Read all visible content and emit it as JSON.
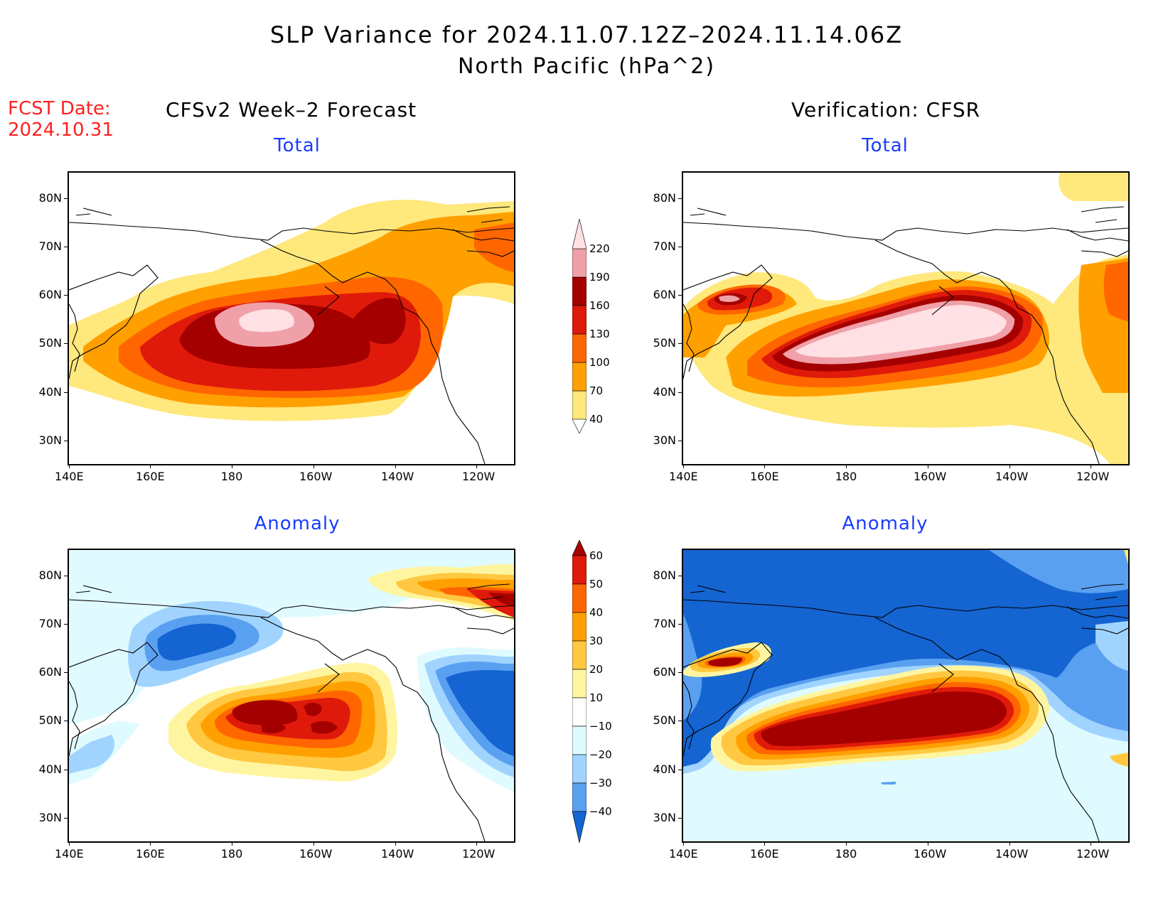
{
  "title": "SLP Variance for 2024.11.07.12Z–2024.11.14.06Z",
  "subtitle": "North Pacific (hPa^2)",
  "forecast_label": "FCST Date:",
  "forecast_date": "2024.10.31",
  "left_column_title": "CFSv2 Week–2 Forecast",
  "right_column_title": "Verification: CFSR",
  "panel_titles": {
    "total": "Total",
    "anomaly": "Anomaly"
  },
  "x_ticks": [
    "140E",
    "160E",
    "180",
    "160W",
    "140W",
    "120W"
  ],
  "y_ticks": [
    "80N",
    "70N",
    "60N",
    "50N",
    "40N",
    "30N"
  ],
  "total_colorbar": {
    "levels": [
      "40",
      "70",
      "100",
      "130",
      "160",
      "190",
      "220"
    ],
    "colors": [
      "#ffe87c",
      "#ffa000",
      "#ff6600",
      "#e01a0a",
      "#a50000",
      "#f0a0a8",
      "#ffe0e4"
    ]
  },
  "anomaly_colorbar": {
    "levels": [
      "60",
      "50",
      "40",
      "30",
      "20",
      "10",
      "−10",
      "−20",
      "−30",
      "−40"
    ],
    "colors": [
      "#a50000",
      "#e01a0a",
      "#ff6600",
      "#ffa000",
      "#ffc840",
      "#fff5a0",
      "#ffffff",
      "#e0fbff",
      "#a0d4ff",
      "#5aa0f0",
      "#1464d2"
    ]
  },
  "colors": {
    "title": "#000000",
    "forecast_date": "#ff2020",
    "panel_title": "#1a3cff"
  }
}
